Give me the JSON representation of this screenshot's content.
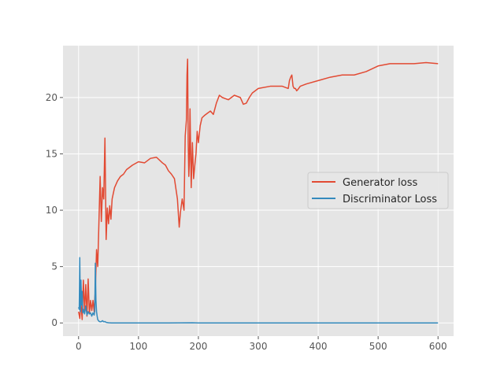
{
  "chart_data": {
    "type": "line",
    "title": "",
    "xlabel": "",
    "ylabel": "",
    "xlim": [
      -26,
      626
    ],
    "ylim": [
      -1.17,
      24.6
    ],
    "grid": true,
    "legend_position": "center-right",
    "x_ticks": [
      0,
      100,
      200,
      300,
      400,
      500,
      600
    ],
    "y_ticks": [
      0,
      5,
      10,
      15,
      20
    ],
    "x_tick_labels": [
      "0",
      "100",
      "200",
      "300",
      "400",
      "500",
      "600"
    ],
    "y_tick_labels": [
      "0",
      "5",
      "10",
      "15",
      "20"
    ],
    "series": [
      {
        "name": "Generator loss",
        "color": "#E24A33",
        "x": [
          0,
          2,
          4,
          6,
          8,
          10,
          12,
          14,
          16,
          18,
          20,
          22,
          24,
          26,
          28,
          30,
          32,
          34,
          36,
          38,
          40,
          42,
          44,
          46,
          48,
          50,
          52,
          54,
          56,
          58,
          60,
          65,
          70,
          75,
          80,
          90,
          100,
          110,
          120,
          130,
          140,
          145,
          150,
          155,
          160,
          165,
          168,
          170,
          173,
          176,
          178,
          180,
          181,
          182,
          183,
          184,
          185,
          186,
          188,
          190,
          192,
          194,
          196,
          198,
          200,
          203,
          206,
          210,
          215,
          220,
          225,
          230,
          235,
          240,
          250,
          260,
          270,
          275,
          280,
          285,
          290,
          300,
          320,
          340,
          350,
          352,
          354,
          356,
          358,
          360,
          362,
          364,
          366,
          370,
          380,
          400,
          420,
          440,
          450,
          460,
          480,
          500,
          520,
          540,
          560,
          580,
          600
        ],
        "y": [
          1.0,
          0.4,
          1.8,
          0.3,
          3.8,
          1.0,
          3.4,
          0.6,
          3.9,
          0.8,
          2.0,
          1.1,
          2.0,
          1.0,
          3.0,
          6.5,
          5.0,
          9.0,
          13.0,
          9.0,
          12.0,
          11.0,
          16.4,
          7.4,
          10.2,
          8.8,
          10.4,
          9.2,
          11.0,
          11.5,
          12.0,
          12.6,
          13.0,
          13.2,
          13.6,
          14.0,
          14.3,
          14.2,
          14.6,
          14.7,
          14.2,
          14.0,
          13.5,
          13.2,
          12.8,
          11.0,
          8.5,
          9.8,
          11.0,
          10.0,
          16.6,
          18.0,
          22.0,
          23.4,
          16.0,
          13.0,
          14.5,
          19.0,
          12.0,
          16.0,
          12.8,
          14.0,
          15.0,
          17.0,
          16.0,
          17.5,
          18.2,
          18.4,
          18.6,
          18.8,
          18.5,
          19.5,
          20.2,
          20.0,
          19.8,
          20.2,
          20.0,
          19.4,
          19.5,
          20.0,
          20.4,
          20.8,
          21.0,
          21.0,
          20.8,
          21.5,
          21.8,
          22.0,
          21.0,
          20.8,
          20.8,
          20.6,
          20.7,
          21.0,
          21.2,
          21.5,
          21.8,
          22.0,
          22.0,
          22.0,
          22.3,
          22.8,
          23.0,
          23.0,
          23.0,
          23.1,
          23.0
        ]
      },
      {
        "name": "Discriminator Loss",
        "color": "#348ABD",
        "x": [
          0,
          1,
          2,
          3,
          4,
          5,
          6,
          7,
          8,
          10,
          12,
          14,
          16,
          18,
          20,
          22,
          24,
          26,
          27,
          28,
          29,
          30,
          31,
          32,
          34,
          36,
          38,
          40,
          42,
          44,
          46,
          50,
          55,
          60,
          80,
          100,
          150,
          190,
          200,
          300,
          400,
          500,
          600
        ],
        "y": [
          1.4,
          1.2,
          5.8,
          1.0,
          3.8,
          1.6,
          2.8,
          0.9,
          1.2,
          0.8,
          1.5,
          0.7,
          1.0,
          0.8,
          0.9,
          0.6,
          0.9,
          0.7,
          1.0,
          5.3,
          2.0,
          1.0,
          0.6,
          0.3,
          0.15,
          0.1,
          0.12,
          0.2,
          0.1,
          0.12,
          0.05,
          0.02,
          0.0,
          0.0,
          0.0,
          0.0,
          0.0,
          0.02,
          0.0,
          0.0,
          0.0,
          0.0,
          0.0
        ]
      }
    ]
  }
}
